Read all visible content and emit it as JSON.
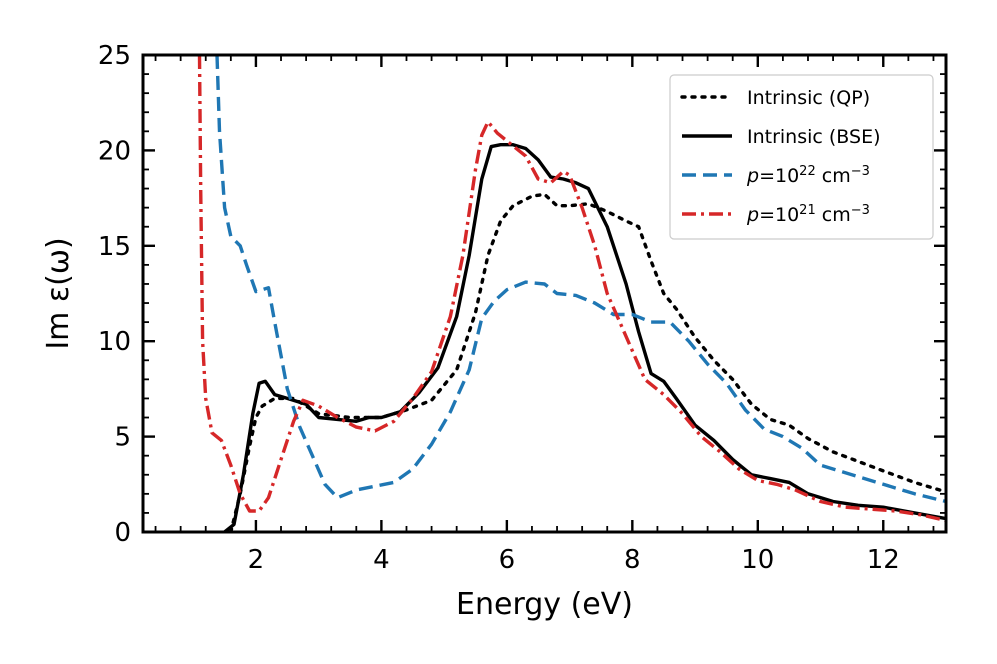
{
  "chart_data": {
    "type": "line",
    "xlabel": "Energy (eV)",
    "ylabel": "Im ε(ω)",
    "xlim": [
      0.2,
      13.0
    ],
    "ylim": [
      0,
      25
    ],
    "xticks": [
      2,
      4,
      6,
      8,
      10,
      12
    ],
    "yticks": [
      0,
      5,
      10,
      15,
      20,
      25
    ],
    "grid": false,
    "legend_position": "top-right",
    "series": [
      {
        "name": "Intrinsic (QP)",
        "label_html": "Intrinsic (QP)",
        "color": "#000000",
        "style": "dotted",
        "points": [
          [
            1.6,
            0
          ],
          [
            1.75,
            2
          ],
          [
            1.9,
            4.5
          ],
          [
            2.0,
            6
          ],
          [
            2.1,
            6.6
          ],
          [
            2.3,
            7.0
          ],
          [
            2.6,
            7.0
          ],
          [
            3.0,
            6.2
          ],
          [
            3.5,
            6.0
          ],
          [
            4.0,
            6.0
          ],
          [
            4.4,
            6.4
          ],
          [
            4.8,
            6.9
          ],
          [
            5.2,
            8.5
          ],
          [
            5.5,
            11.5
          ],
          [
            5.7,
            14.5
          ],
          [
            5.9,
            16.3
          ],
          [
            6.1,
            17.1
          ],
          [
            6.4,
            17.6
          ],
          [
            6.6,
            17.7
          ],
          [
            6.8,
            17.1
          ],
          [
            7.0,
            17.1
          ],
          [
            7.3,
            17.2
          ],
          [
            7.6,
            16.8
          ],
          [
            7.9,
            16.3
          ],
          [
            8.1,
            16.0
          ],
          [
            8.3,
            14.2
          ],
          [
            8.5,
            12.5
          ],
          [
            8.7,
            11.7
          ],
          [
            9.0,
            10.2
          ],
          [
            9.3,
            9.0
          ],
          [
            9.6,
            8.0
          ],
          [
            9.9,
            6.7
          ],
          [
            10.2,
            5.9
          ],
          [
            10.5,
            5.6
          ],
          [
            10.8,
            4.9
          ],
          [
            11.2,
            4.2
          ],
          [
            11.6,
            3.7
          ],
          [
            12.0,
            3.2
          ],
          [
            12.5,
            2.6
          ],
          [
            13.0,
            2.1
          ]
        ]
      },
      {
        "name": "Intrinsic (BSE)",
        "label_html": "Intrinsic (BSE)",
        "color": "#000000",
        "style": "solid",
        "points": [
          [
            1.5,
            0
          ],
          [
            1.65,
            0.4
          ],
          [
            1.8,
            3.0
          ],
          [
            1.95,
            6.2
          ],
          [
            2.05,
            7.8
          ],
          [
            2.15,
            7.9
          ],
          [
            2.3,
            7.2
          ],
          [
            2.5,
            7.0
          ],
          [
            2.8,
            6.7
          ],
          [
            3.0,
            6.0
          ],
          [
            3.3,
            5.9
          ],
          [
            3.6,
            5.8
          ],
          [
            3.8,
            6.0
          ],
          [
            4.0,
            6.0
          ],
          [
            4.3,
            6.3
          ],
          [
            4.6,
            7.3
          ],
          [
            4.9,
            8.6
          ],
          [
            5.2,
            11.3
          ],
          [
            5.4,
            14.5
          ],
          [
            5.6,
            18.5
          ],
          [
            5.75,
            20.2
          ],
          [
            5.9,
            20.3
          ],
          [
            6.1,
            20.3
          ],
          [
            6.3,
            20.1
          ],
          [
            6.5,
            19.5
          ],
          [
            6.7,
            18.6
          ],
          [
            6.9,
            18.5
          ],
          [
            7.1,
            18.3
          ],
          [
            7.3,
            18.0
          ],
          [
            7.6,
            16.0
          ],
          [
            7.9,
            13.0
          ],
          [
            8.1,
            10.5
          ],
          [
            8.3,
            8.3
          ],
          [
            8.5,
            7.9
          ],
          [
            8.7,
            7.0
          ],
          [
            9.0,
            5.6
          ],
          [
            9.3,
            4.8
          ],
          [
            9.6,
            3.8
          ],
          [
            9.9,
            3.0
          ],
          [
            10.2,
            2.8
          ],
          [
            10.5,
            2.6
          ],
          [
            10.8,
            2.0
          ],
          [
            11.2,
            1.6
          ],
          [
            11.6,
            1.4
          ],
          [
            12.0,
            1.3
          ],
          [
            12.5,
            1.0
          ],
          [
            13.0,
            0.7
          ]
        ]
      },
      {
        "name": "p=10^22 cm^-3",
        "label_html": "<tspan font-style=\"italic\">p</tspan>=10<tspan baseline-shift=\"super\" font-size=\"13\">22</tspan> cm<tspan baseline-shift=\"super\" font-size=\"13\">−3</tspan>",
        "color": "#1f77b4",
        "style": "dashed",
        "points": [
          [
            1.38,
            25.0
          ],
          [
            1.42,
            21.0
          ],
          [
            1.5,
            17.0
          ],
          [
            1.6,
            15.5
          ],
          [
            1.75,
            15.0
          ],
          [
            1.85,
            14.0
          ],
          [
            2.0,
            12.6
          ],
          [
            2.2,
            12.8
          ],
          [
            2.3,
            11.0
          ],
          [
            2.5,
            7.5
          ],
          [
            2.7,
            5.5
          ],
          [
            2.9,
            4.0
          ],
          [
            3.1,
            2.5
          ],
          [
            3.3,
            1.8
          ],
          [
            3.6,
            2.2
          ],
          [
            3.9,
            2.4
          ],
          [
            4.2,
            2.6
          ],
          [
            4.5,
            3.3
          ],
          [
            4.8,
            4.6
          ],
          [
            5.1,
            6.3
          ],
          [
            5.4,
            8.5
          ],
          [
            5.6,
            11.2
          ],
          [
            5.8,
            12.1
          ],
          [
            6.0,
            12.7
          ],
          [
            6.3,
            13.1
          ],
          [
            6.6,
            13.0
          ],
          [
            6.8,
            12.5
          ],
          [
            7.1,
            12.4
          ],
          [
            7.4,
            12.0
          ],
          [
            7.7,
            11.4
          ],
          [
            8.0,
            11.4
          ],
          [
            8.3,
            11.0
          ],
          [
            8.6,
            11.0
          ],
          [
            8.9,
            10.0
          ],
          [
            9.2,
            8.8
          ],
          [
            9.5,
            7.8
          ],
          [
            9.8,
            6.4
          ],
          [
            10.1,
            5.4
          ],
          [
            10.4,
            5.0
          ],
          [
            10.7,
            4.4
          ],
          [
            11.0,
            3.5
          ],
          [
            11.3,
            3.2
          ],
          [
            11.6,
            2.9
          ],
          [
            12.0,
            2.5
          ],
          [
            12.5,
            2.0
          ],
          [
            13.0,
            1.6
          ]
        ]
      },
      {
        "name": "p=10^21 cm^-3",
        "label_html": "<tspan font-style=\"italic\">p</tspan>=10<tspan baseline-shift=\"super\" font-size=\"13\">21</tspan> cm<tspan baseline-shift=\"super\" font-size=\"13\">−3</tspan>",
        "color": "#d62728",
        "style": "dashdot",
        "points": [
          [
            1.1,
            25.0
          ],
          [
            1.12,
            18.0
          ],
          [
            1.15,
            10.0
          ],
          [
            1.2,
            7.0
          ],
          [
            1.3,
            5.2
          ],
          [
            1.45,
            4.8
          ],
          [
            1.6,
            3.5
          ],
          [
            1.75,
            2.0
          ],
          [
            1.9,
            1.1
          ],
          [
            2.05,
            1.1
          ],
          [
            2.2,
            1.8
          ],
          [
            2.4,
            3.8
          ],
          [
            2.6,
            5.8
          ],
          [
            2.75,
            6.9
          ],
          [
            3.0,
            6.6
          ],
          [
            3.3,
            6.0
          ],
          [
            3.6,
            5.5
          ],
          [
            3.9,
            5.3
          ],
          [
            4.2,
            5.8
          ],
          [
            4.5,
            7.0
          ],
          [
            4.8,
            8.4
          ],
          [
            5.1,
            11.3
          ],
          [
            5.3,
            14.5
          ],
          [
            5.5,
            19.0
          ],
          [
            5.6,
            20.8
          ],
          [
            5.7,
            21.5
          ],
          [
            5.85,
            20.9
          ],
          [
            6.0,
            20.5
          ],
          [
            6.3,
            19.7
          ],
          [
            6.5,
            18.5
          ],
          [
            6.7,
            18.3
          ],
          [
            6.9,
            18.9
          ],
          [
            7.0,
            18.7
          ],
          [
            7.2,
            17.0
          ],
          [
            7.4,
            15.0
          ],
          [
            7.6,
            12.5
          ],
          [
            7.8,
            11.0
          ],
          [
            8.0,
            9.5
          ],
          [
            8.2,
            8.0
          ],
          [
            8.5,
            7.2
          ],
          [
            8.8,
            6.2
          ],
          [
            9.1,
            5.0
          ],
          [
            9.4,
            4.2
          ],
          [
            9.7,
            3.3
          ],
          [
            10.0,
            2.7
          ],
          [
            10.3,
            2.5
          ],
          [
            10.6,
            2.2
          ],
          [
            11.0,
            1.6
          ],
          [
            11.4,
            1.3
          ],
          [
            11.8,
            1.2
          ],
          [
            12.2,
            1.1
          ],
          [
            12.6,
            0.9
          ],
          [
            13.0,
            0.6
          ]
        ]
      }
    ]
  }
}
